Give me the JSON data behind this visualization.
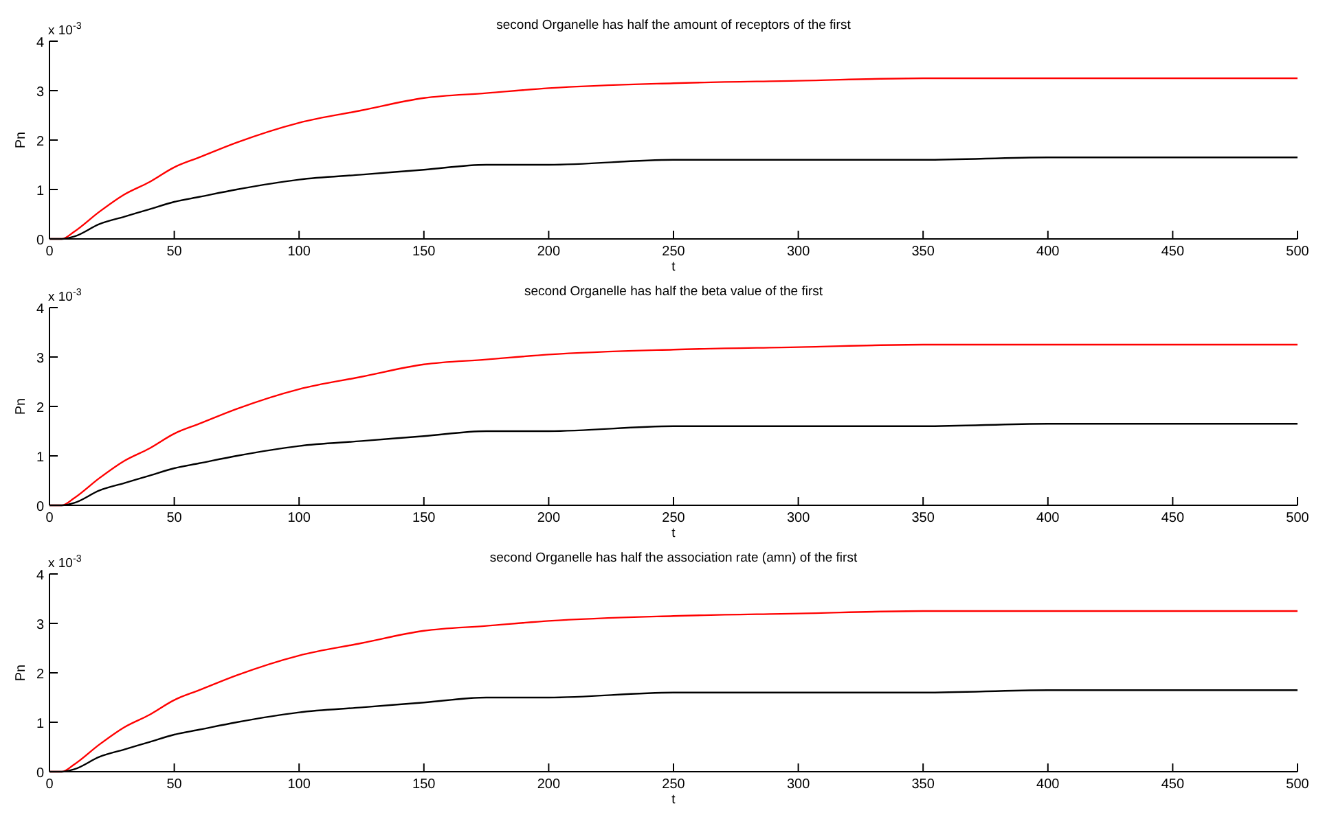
{
  "chart_data": [
    {
      "type": "line",
      "title": "second Organelle has half the amount of receptors of the first",
      "xlabel": "t",
      "ylabel": "Pn",
      "annotations": [
        "x 10$^{-3}$"
      ],
      "x": [
        0,
        5,
        10,
        20,
        30,
        40,
        50,
        60,
        75,
        100,
        125,
        150,
        175,
        200,
        250,
        300,
        350,
        400,
        450,
        500
      ],
      "series": [
        {
          "color": "#ff0000",
          "values": [
            0,
            0,
            0.15,
            0.55,
            0.9,
            1.15,
            1.45,
            1.65,
            1.95,
            2.35,
            2.6,
            2.85,
            2.95,
            3.05,
            3.15,
            3.2,
            3.25,
            3.25,
            3.25,
            3.25
          ]
        },
        {
          "color": "#000000",
          "values": [
            0,
            0,
            0.05,
            0.3,
            0.45,
            0.6,
            0.75,
            0.85,
            1,
            1.2,
            1.3,
            1.4,
            1.5,
            1.5,
            1.6,
            1.6,
            1.6,
            1.65,
            1.65,
            1.65
          ]
        }
      ],
      "xlim": [
        0,
        500
      ],
      "xticks": [
        0,
        50,
        100,
        150,
        200,
        250,
        300,
        350,
        400,
        450,
        500
      ],
      "ylim": [
        0,
        4
      ],
      "yticks": [
        0,
        1,
        2,
        3,
        4
      ]
    },
    {
      "type": "line",
      "title": "second Organelle has half the beta value of the first",
      "xlabel": "t",
      "ylabel": "Pn",
      "annotations": [
        "x 10$^{-3}$"
      ],
      "x": [
        0,
        5,
        10,
        20,
        30,
        40,
        50,
        60,
        75,
        100,
        125,
        150,
        175,
        200,
        250,
        300,
        350,
        400,
        450,
        500
      ],
      "series": [
        {
          "color": "#ff0000",
          "values": [
            0,
            0,
            0.15,
            0.55,
            0.9,
            1.15,
            1.45,
            1.65,
            1.95,
            2.35,
            2.6,
            2.85,
            2.95,
            3.05,
            3.15,
            3.2,
            3.25,
            3.25,
            3.25,
            3.25
          ]
        },
        {
          "color": "#000000",
          "values": [
            0,
            0,
            0.05,
            0.3,
            0.45,
            0.6,
            0.75,
            0.85,
            1,
            1.2,
            1.3,
            1.4,
            1.5,
            1.5,
            1.6,
            1.6,
            1.6,
            1.65,
            1.65,
            1.65
          ]
        }
      ],
      "xlim": [
        0,
        500
      ],
      "xticks": [
        0,
        50,
        100,
        150,
        200,
        250,
        300,
        350,
        400,
        450,
        500
      ],
      "ylim": [
        0,
        4
      ],
      "yticks": [
        0,
        1,
        2,
        3,
        4
      ]
    },
    {
      "type": "line",
      "title": "second Organelle has half the association rate (amn) of the first",
      "xlabel": "t",
      "ylabel": "Pn",
      "annotations": [
        "x 10$^{-3}$"
      ],
      "x": [
        0,
        5,
        10,
        20,
        30,
        40,
        50,
        60,
        75,
        100,
        125,
        150,
        175,
        200,
        250,
        300,
        350,
        400,
        450,
        500
      ],
      "series": [
        {
          "color": "#ff0000",
          "values": [
            0,
            0,
            0.15,
            0.55,
            0.9,
            1.15,
            1.45,
            1.65,
            1.95,
            2.35,
            2.6,
            2.85,
            2.95,
            3.05,
            3.15,
            3.2,
            3.25,
            3.25,
            3.25,
            3.25
          ]
        },
        {
          "color": "#000000",
          "values": [
            0,
            0,
            0.05,
            0.3,
            0.45,
            0.6,
            0.75,
            0.85,
            1,
            1.2,
            1.3,
            1.4,
            1.5,
            1.5,
            1.6,
            1.6,
            1.6,
            1.65,
            1.65,
            1.65
          ]
        }
      ],
      "xlim": [
        0,
        500
      ],
      "xticks": [
        0,
        50,
        100,
        150,
        200,
        250,
        300,
        350,
        400,
        450,
        500
      ],
      "ylim": [
        0,
        4
      ],
      "yticks": [
        0,
        1,
        2,
        3,
        4
      ]
    }
  ]
}
